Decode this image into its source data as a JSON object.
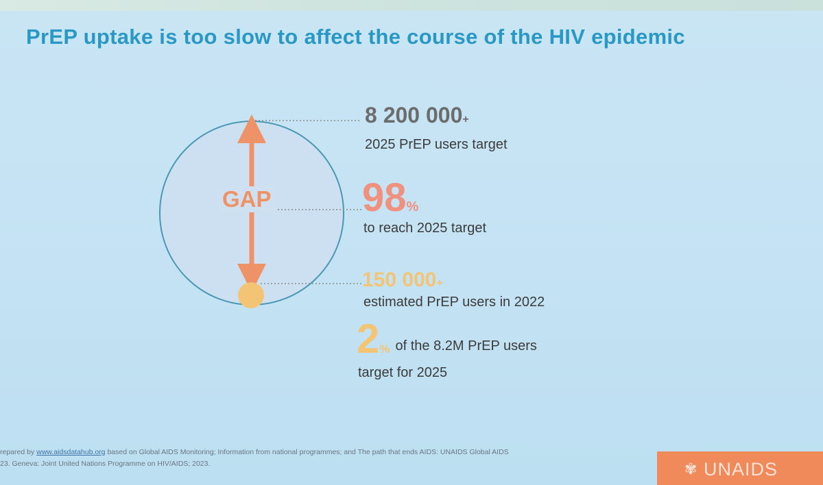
{
  "title": "PrEP uptake is too slow to affect the course of the HIV epidemic",
  "diagram": {
    "gap_label": "GAP",
    "stats": [
      {
        "value": "8 200 000",
        "suffix": "+",
        "label": "2025 PrEP users target"
      },
      {
        "value": "98",
        "suffix": "%",
        "label": "to reach 2025 target"
      },
      {
        "value": "150 000",
        "suffix": "+",
        "label": "estimated PrEP users in 2022"
      },
      {
        "value": "2",
        "suffix": "%",
        "label_inline": "of the 8.2M PrEP users",
        "label": "target for 2025"
      }
    ],
    "colors": {
      "title": "#2a98c4",
      "gap": "#ee9268",
      "current": "#f2c474",
      "circle_outline": "#4a98b3"
    }
  },
  "footer": {
    "line1_prefix": "repared by",
    "line1_link": "www.aidsdatahub.org",
    "line1_rest": "based on Global AIDS Monitoring; Information from national programmes; and The path that ends AIDS: UNAIDS Global AIDS",
    "line2": "23. Geneva: Joint United Nations Programme on HIV/AIDS; 2023."
  },
  "logo": {
    "text": "UNAIDS",
    "icon": "unaids-ribbon-icon"
  }
}
